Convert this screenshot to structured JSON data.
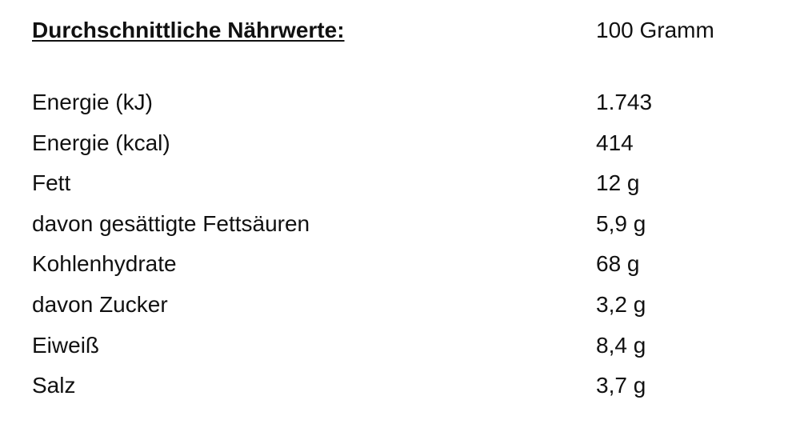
{
  "header": {
    "title": "Durchschnittliche Nährwerte:",
    "unit": "100 Gramm"
  },
  "rows": [
    {
      "name": "Energie (kJ)",
      "value": "1.743"
    },
    {
      "name": "Energie (kcal)",
      "value": "414"
    },
    {
      "name": "Fett",
      "value": "12 g"
    },
    {
      "name": "davon gesättigte Fettsäuren",
      "value": "5,9 g"
    },
    {
      "name": "Kohlenhydrate",
      "value": "68 g"
    },
    {
      "name": "davon Zucker",
      "value": "3,2 g"
    },
    {
      "name": "Eiweiß",
      "value": "8,4 g"
    },
    {
      "name": "Salz",
      "value": "3,7 g"
    }
  ]
}
